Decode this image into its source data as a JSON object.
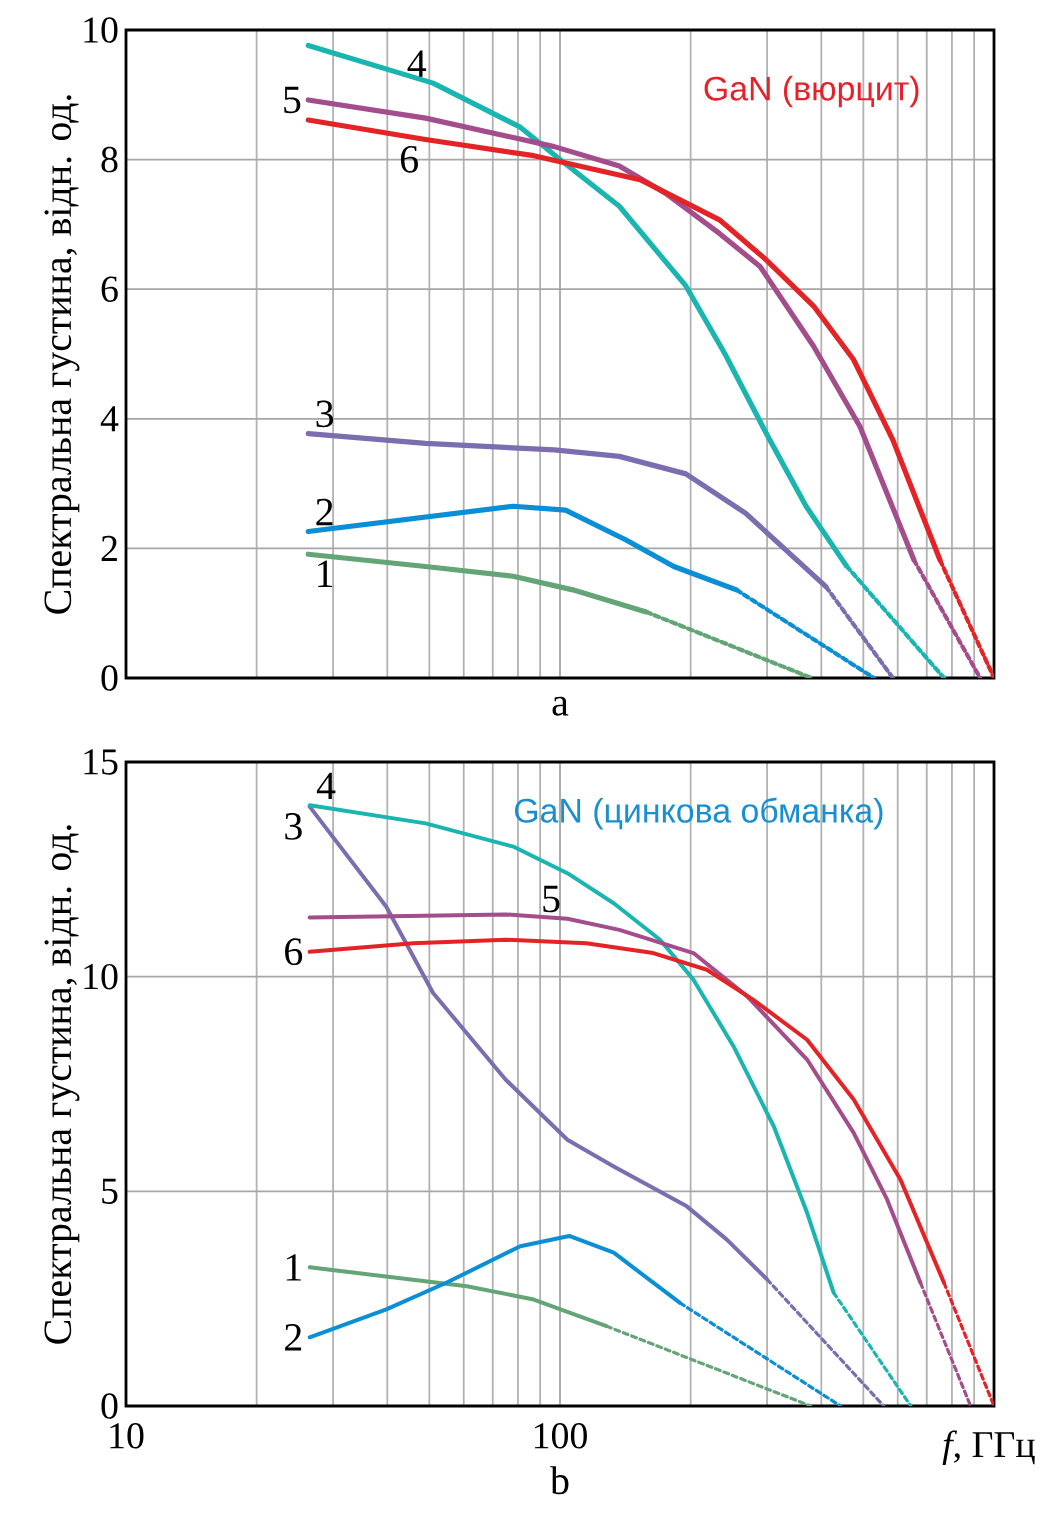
{
  "chart_data": [
    {
      "type": "line",
      "title": "GaN (вюрцит)",
      "ylabel": "Спектральна густина, відн. од.",
      "xlabel": "a",
      "log": "x",
      "grid": true,
      "tick_labels": "y",
      "marker": "none",
      "xlim": [
        10,
        1000
      ],
      "xticks": [
        10,
        100
      ],
      "ylim": [
        0,
        10
      ],
      "yticks": [
        0,
        2,
        4,
        6,
        8,
        10
      ],
      "series": [
        {
          "name": "1",
          "color": "#64a577",
          "x": [
            26.3,
            49,
            78,
            107,
            158
          ],
          "values": [
            1.91,
            1.72,
            1.57,
            1.36,
            1.02
          ]
        },
        {
          "color": "#64a577",
          "line_style": "dotted",
          "x": [
            158,
            380
          ],
          "values": [
            1.02,
            0
          ]
        },
        {
          "name": "2",
          "color": "#0a8fd6",
          "x": [
            26.3,
            78,
            103,
            142,
            183,
            255
          ],
          "values": [
            2.26,
            2.65,
            2.59,
            2.13,
            1.72,
            1.36
          ]
        },
        {
          "color": "#0a8fd6",
          "line_style": "dotted",
          "x": [
            255,
            529
          ],
          "values": [
            1.36,
            0
          ]
        },
        {
          "name": "3",
          "color": "#7b6db0",
          "x": [
            26.3,
            49,
            97,
            137,
            195,
            268,
            410
          ],
          "values": [
            3.77,
            3.62,
            3.52,
            3.42,
            3.15,
            2.54,
            1.41
          ]
        },
        {
          "color": "#7b6db0",
          "line_style": "dotted",
          "x": [
            410,
            585
          ],
          "values": [
            1.41,
            0
          ]
        },
        {
          "name": "4",
          "color": "#1ab5b0",
          "x": [
            26.3,
            51,
            81,
            100,
            137,
            195,
            240,
            299,
            369,
            457
          ],
          "values": [
            9.76,
            9.18,
            8.5,
            8.0,
            7.28,
            6.05,
            5.0,
            3.77,
            2.65,
            1.73
          ]
        },
        {
          "color": "#1ab5b0",
          "line_style": "dotted",
          "x": [
            457,
            767
          ],
          "values": [
            1.73,
            0
          ]
        },
        {
          "name": "5",
          "color": "#a34d8c",
          "x": [
            26.3,
            49,
            97,
            137,
            175,
            233,
            289,
            384,
            491,
            654
          ],
          "values": [
            8.92,
            8.64,
            8.2,
            7.9,
            7.48,
            6.86,
            6.35,
            5.12,
            3.88,
            1.82
          ]
        },
        {
          "color": "#a34d8c",
          "line_style": "dotted",
          "x": [
            654,
            929
          ],
          "values": [
            1.82,
            0
          ]
        },
        {
          "name": "6",
          "color": "#e32326",
          "x": [
            26.3,
            49,
            87,
            153,
            233,
            299,
            384,
            475,
            585,
            751
          ],
          "values": [
            8.61,
            8.31,
            8.06,
            7.69,
            7.07,
            6.45,
            5.74,
            4.91,
            3.67,
            1.82
          ]
        },
        {
          "color": "#e32326",
          "line_style": "dotted",
          "x": [
            751,
            1000
          ],
          "values": [
            1.82,
            0
          ]
        }
      ]
    },
    {
      "type": "line",
      "title": "GaN (цинкова обманка)",
      "ylabel": "Спектральна густина, відн. од.",
      "xlabel": "b",
      "log": "x",
      "grid": true,
      "marker": "none",
      "annotations": [
        "*f*, ГГц"
      ],
      "xlim": [
        10,
        1000
      ],
      "xticks": [
        10,
        100
      ],
      "ylim": [
        0,
        15
      ],
      "yticks": [
        0,
        5,
        10,
        15
      ],
      "series": [
        {
          "name": "1",
          "color": "#64a577",
          "x": [
            26.5,
            61,
            87,
            128
          ],
          "values": [
            3.23,
            2.79,
            2.48,
            1.86
          ]
        },
        {
          "color": "#64a577",
          "line_style": "dotted",
          "x": [
            128,
            378
          ],
          "values": [
            1.86,
            0
          ]
        },
        {
          "name": "2",
          "color": "#0a8fd6",
          "x": [
            26.5,
            39.8,
            54.7,
            81,
            105,
            133,
            189
          ],
          "values": [
            1.6,
            2.25,
            2.87,
            3.72,
            3.96,
            3.57,
            2.4
          ]
        },
        {
          "color": "#0a8fd6",
          "line_style": "dotted",
          "x": [
            189,
            443
          ],
          "values": [
            2.4,
            0
          ]
        },
        {
          "name": "3",
          "color": "#7b6db0",
          "x": [
            26.5,
            39.8,
            51,
            75,
            104,
            133,
            196,
            242,
            300
          ],
          "values": [
            13.96,
            11.63,
            9.62,
            7.6,
            6.2,
            5.58,
            4.65,
            3.88,
            2.95
          ]
        },
        {
          "color": "#7b6db0",
          "line_style": "dotted",
          "x": [
            300,
            557
          ],
          "values": [
            2.95,
            0
          ]
        },
        {
          "name": "4",
          "color": "#1ab5b0",
          "x": [
            26.5,
            49,
            78,
            104,
            133,
            170,
            203,
            251,
            311,
            371,
            427
          ],
          "values": [
            13.99,
            13.57,
            13.03,
            12.41,
            11.71,
            10.86,
            9.93,
            8.38,
            6.51,
            4.5,
            2.64
          ]
        },
        {
          "color": "#1ab5b0",
          "line_style": "dotted",
          "x": [
            427,
            643
          ],
          "values": [
            2.64,
            0
          ]
        },
        {
          "name": "5",
          "color": "#a34d8c",
          "x": [
            26.5,
            75,
            104,
            137,
            203,
            270,
            371,
            475,
            567,
            677
          ],
          "values": [
            11.38,
            11.45,
            11.35,
            11.09,
            10.55,
            9.54,
            8.07,
            6.36,
            4.81,
            2.87
          ]
        },
        {
          "color": "#a34d8c",
          "line_style": "dotted",
          "x": [
            677,
            883
          ],
          "values": [
            2.87,
            0
          ]
        },
        {
          "name": "6",
          "color": "#e32326",
          "x": [
            26.5,
            45.9,
            75,
            115,
            164,
            218,
            279,
            371,
            475,
            609,
            767
          ],
          "values": [
            10.58,
            10.78,
            10.86,
            10.78,
            10.55,
            10.16,
            9.46,
            8.53,
            7.14,
            5.27,
            2.87
          ]
        },
        {
          "color": "#e32326",
          "line_style": "dotted",
          "x": [
            767,
            1000
          ],
          "values": [
            2.87,
            0
          ]
        }
      ]
    }
  ]
}
